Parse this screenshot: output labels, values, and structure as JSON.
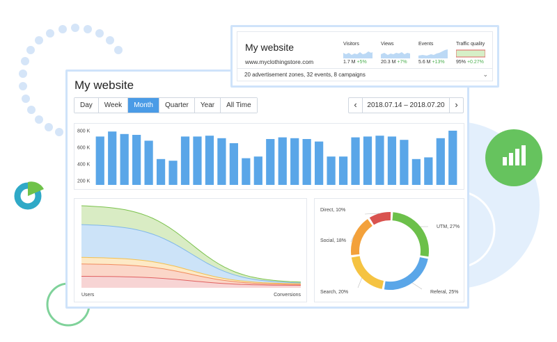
{
  "main": {
    "title": "My website",
    "tabs": [
      {
        "label": "Day"
      },
      {
        "label": "Week"
      },
      {
        "label": "Month",
        "active": true
      },
      {
        "label": "Quarter"
      },
      {
        "label": "Year"
      },
      {
        "label": "All Time"
      }
    ],
    "date_range": "2018.07.14 – 2018.07.20",
    "prev_icon": "chevron-left-icon",
    "next_icon": "chevron-right-icon"
  },
  "summary": {
    "title": "My website",
    "url": "www.myclothingstore.com",
    "metrics": [
      {
        "label": "Visitors",
        "value": "1.7 M",
        "delta": "+5%"
      },
      {
        "label": "Views",
        "value": "20.3 M",
        "delta": "+7%"
      },
      {
        "label": "Events",
        "value": "5.6 M",
        "delta": "+13%"
      },
      {
        "label": "Traffic quality",
        "value": "95%",
        "delta": "+0.27%"
      }
    ],
    "footer": "20 advertisement zones, 32 events, 8 campaigns",
    "footer_icon": "chevron-down-icon"
  },
  "colors": {
    "accent": "#4a9be6",
    "bar": "#5aa6e8",
    "positive": "#4caf50",
    "window_border": "#cfe3fa",
    "decor_green": "#5cc15a",
    "decor_blue": "#d7e8fb"
  },
  "chart_data": [
    {
      "type": "bar",
      "title": "",
      "ylim": [
        150000,
        850000
      ],
      "yticks": [
        "800 K",
        "600 K",
        "400 K",
        "200 K"
      ],
      "ytick_values": [
        800000,
        600000,
        400000,
        200000
      ],
      "grid": false,
      "values": [
        730000,
        790000,
        760000,
        750000,
        680000,
        460000,
        440000,
        730000,
        730000,
        740000,
        710000,
        650000,
        470000,
        490000,
        700000,
        720000,
        710000,
        700000,
        670000,
        490000,
        490000,
        720000,
        730000,
        740000,
        730000,
        690000,
        460000,
        480000,
        710000,
        800000
      ]
    },
    {
      "type": "area",
      "xlabels": [
        "Users",
        "Conversions"
      ],
      "x": [
        0,
        1
      ],
      "series": [
        {
          "color": "#d9ecc4",
          "line": "#7bc24d",
          "start": 100,
          "end": 7
        },
        {
          "color": "#cce3f8",
          "line": "#7fb7ea",
          "start": 77,
          "end": 6
        },
        {
          "color": "#fde9c6",
          "line": "#f4c04e",
          "start": 37,
          "end": 5
        },
        {
          "color": "#fbd6c8",
          "line": "#f08a5d",
          "start": 29,
          "end": 4
        },
        {
          "color": "#f7d4d4",
          "line": "#e06060",
          "start": 14,
          "end": 3
        }
      ]
    },
    {
      "type": "pie",
      "donut": true,
      "series": [
        {
          "name": "UTM",
          "value": 27,
          "label": "UTM, 27%",
          "color": "#6cc04a"
        },
        {
          "name": "Referal",
          "value": 25,
          "label": "Referal, 25%",
          "color": "#5aa6e8"
        },
        {
          "name": "Search",
          "value": 20,
          "label": "Search, 20%",
          "color": "#f5c342"
        },
        {
          "name": "Social",
          "value": 18,
          "label": "Social, 18%",
          "color": "#f3a13b"
        },
        {
          "name": "Direct",
          "value": 10,
          "label": "Direct, 10%",
          "color": "#d9534f"
        }
      ]
    }
  ]
}
